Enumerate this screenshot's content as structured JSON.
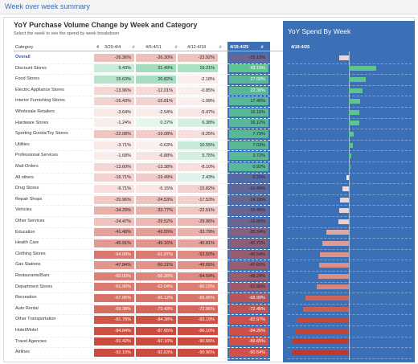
{
  "page": {
    "title": "Week over week summary"
  },
  "table": {
    "title": "YoY Purchase Volume Change by Week and Category",
    "subtitle": "Select the week to see the spend by week breakdown",
    "headers": {
      "category": "Category",
      "sort_mark": "4",
      "w1": "3/29-4/4",
      "w2": "4/5-4/11",
      "w3": "4/12-4/18",
      "w4": "4/19-4/25",
      "sort_icon": "⇵",
      "sort_icon_hl": "⇵"
    },
    "rows": [
      {
        "category": "Overall",
        "link": true,
        "w1": "-26.36%",
        "w2": "-26.30%",
        "w3": "-23.92%",
        "w4": "-15.12%",
        "v1": -26.36,
        "v2": -26.3,
        "v3": -23.92,
        "v4": -15.12
      },
      {
        "category": "Discount Stores",
        "w1": "9.43%",
        "w2": "21.49%",
        "w3": "19.21%",
        "w4": "43.15%",
        "v1": 9.43,
        "v2": 21.49,
        "v3": 19.21,
        "v4": 43.15
      },
      {
        "category": "Food Stores",
        "w1": "15.63%",
        "w2": "20.82%",
        "w3": "-2.18%",
        "w4": "27.00%",
        "v1": 15.63,
        "v2": 20.82,
        "v3": -2.18,
        "v4": 27.0
      },
      {
        "category": "Electric Appliance Stores",
        "w1": "-13.96%",
        "w2": "-12.01%",
        "w3": "-0.85%",
        "w4": "22.38%",
        "v1": -13.96,
        "v2": -12.01,
        "v3": -0.85,
        "v4": 22.38
      },
      {
        "category": "Interior Furnishing Stores",
        "w1": "-15.43%",
        "w2": "-15.81%",
        "w3": "-1.08%",
        "w4": "17.46%",
        "v1": -15.43,
        "v2": -15.81,
        "v3": -1.08,
        "v4": 17.46
      },
      {
        "category": "Wholesale Retailers",
        "w1": "-3.64%",
        "w2": "-2.54%",
        "w3": "-5.47%",
        "w4": "16.16%",
        "v1": -3.64,
        "v2": -2.54,
        "v3": -5.47,
        "v4": 16.16
      },
      {
        "category": "Hardware Stores",
        "w1": "-1.24%",
        "w2": "0.37%",
        "w3": "6.38%",
        "w4": "16.12%",
        "v1": -1.24,
        "v2": 0.37,
        "v3": 6.38,
        "v4": 16.12
      },
      {
        "category": "Sporting Goods/Toy Stores",
        "w1": "-22.08%",
        "w2": "-19.08%",
        "w3": "-9.25%",
        "w4": "7.79%",
        "v1": -22.08,
        "v2": -19.08,
        "v3": -9.25,
        "v4": 7.79
      },
      {
        "category": "Utilities",
        "w1": "-3.71%",
        "w2": "-0.63%",
        "w3": "10.55%",
        "w4": "7.03%",
        "v1": -3.71,
        "v2": -0.63,
        "v3": 10.55,
        "v4": 7.03
      },
      {
        "category": "Professional Services",
        "w1": "-1.68%",
        "w2": "-6.88%",
        "w3": "5.75%",
        "w4": "3.72%",
        "v1": -1.68,
        "v2": -6.88,
        "v3": 5.75,
        "v4": 3.72
      },
      {
        "category": "Mail-Orders",
        "w1": "-13.60%",
        "w2": "-13.38%",
        "w3": "-8.10%",
        "w4": "0.92%",
        "v1": -13.6,
        "v2": -13.38,
        "v3": -8.1,
        "v4": 0.92
      },
      {
        "category": "All others",
        "w1": "-16.71%",
        "w2": "-19.49%",
        "w3": "2.43%",
        "w4": "-3.31%",
        "v1": -16.71,
        "v2": -19.49,
        "v3": 2.43,
        "v4": -3.31
      },
      {
        "category": "Drug Stores",
        "w1": "-9.71%",
        "w2": "-5.15%",
        "w3": "-15.82%",
        "w4": "-10.49%",
        "v1": -9.71,
        "v2": -5.15,
        "v3": -15.82,
        "v4": -10.49
      },
      {
        "category": "Repair Shops",
        "w1": "-20.96%",
        "w2": "-24.53%",
        "w3": "-17.53%",
        "w4": "-14.18%",
        "v1": -20.96,
        "v2": -24.53,
        "v3": -17.53,
        "v4": -14.18
      },
      {
        "category": "Vehicles",
        "w1": "-34.29%",
        "w2": "-33.77%",
        "w3": "-22.51%",
        "w4": "-15.45%",
        "v1": -34.29,
        "v2": -33.77,
        "v3": -22.51,
        "v4": -15.45
      },
      {
        "category": "Other Services",
        "w1": "-24.47%",
        "w2": "-29.52%",
        "w3": "-29.96%",
        "w4": "-16.80%",
        "v1": -24.47,
        "v2": -29.52,
        "v3": -29.96,
        "v4": -16.8
      },
      {
        "category": "Education",
        "w1": "-41.48%",
        "w2": "-43.55%",
        "w3": "-33.79%",
        "w4": "-35.34%",
        "v1": -41.48,
        "v2": -43.55,
        "v3": -33.79,
        "v4": -35.34
      },
      {
        "category": "Health Care",
        "w1": "-45.91%",
        "w2": "-49.16%",
        "w3": "-40.81%",
        "w4": "-41.71%",
        "v1": -45.91,
        "v2": -49.16,
        "v3": -40.81,
        "v4": -41.71
      },
      {
        "category": "Clothing Stores",
        "w1": "-64.09%",
        "w2": "-61.97%",
        "w3": "-53.50%",
        "w4": "-46.54%",
        "v1": -64.09,
        "v2": -61.97,
        "v3": -53.5,
        "v4": -46.54
      },
      {
        "category": "Gas Stations",
        "w1": "-47.84%",
        "w2": "-50.21%",
        "w3": "-49.66%",
        "w4": "-47.63%",
        "v1": -47.84,
        "v2": -50.21,
        "v3": -49.66,
        "v4": -47.63
      },
      {
        "category": "Restaurants/Bars",
        "w1": "-60.00%",
        "w2": "-56.26%",
        "w3": "-54.59%",
        "w4": "-48.23%",
        "v1": -60.0,
        "v2": -56.26,
        "v3": -54.59,
        "v4": -48.23
      },
      {
        "category": "Department Stores",
        "w1": "-61.90%",
        "w2": "-63.04%",
        "w3": "-60.15%",
        "w4": "-51.90%",
        "v1": -61.9,
        "v2": -63.04,
        "v3": -60.15,
        "v4": -51.9
      },
      {
        "category": "Recreation",
        "w1": "-67.06%",
        "w2": "-66.12%",
        "w3": "-65.06%",
        "w4": "-68.99%",
        "v1": -67.06,
        "v2": -66.12,
        "v3": -65.06,
        "v4": -68.99
      },
      {
        "category": "Auto Rental",
        "w1": "-69.38%",
        "w2": "-73.43%",
        "w3": "-72.96%",
        "w4": "-72.45%",
        "v1": -69.38,
        "v2": -73.43,
        "v3": -72.96,
        "v4": -72.45
      },
      {
        "category": "Other Transportation",
        "w1": "-81.78%",
        "w2": "-84.38%",
        "w3": "-83.19%",
        "w4": "-82.97%",
        "v1": -81.78,
        "v2": -84.38,
        "v3": -83.19,
        "v4": -82.97
      },
      {
        "category": "Hotel/Motel",
        "w1": "-84.84%",
        "w2": "-87.65%",
        "w3": "-86.10%",
        "w4": "-84.26%",
        "v1": -84.84,
        "v2": -87.65,
        "v3": -86.1,
        "v4": -84.26
      },
      {
        "category": "Travel Agencies",
        "w1": "-91.42%",
        "w2": "-92.16%",
        "w3": "-90.66%",
        "w4": "-89.65%",
        "v1": -91.42,
        "v2": -92.16,
        "v3": -90.66,
        "v4": -89.65
      },
      {
        "category": "Airlines",
        "w1": "-92.10%",
        "w2": "-92.63%",
        "w3": "-90.96%",
        "w4": "-90.54%",
        "v1": -92.1,
        "v2": -92.63,
        "v3": -90.96,
        "v4": -90.54
      }
    ]
  },
  "panel": {
    "title": "YoY Spend By Week",
    "col_header": "4/19-4/25"
  },
  "colors": {
    "accent_blue": "#3b70b6",
    "title_blue": "#3b6db3",
    "positive_green": "#5fc48f",
    "negative_red": "#c0392b",
    "bar_light": "#f6f2f2"
  },
  "chart_data": {
    "type": "bar",
    "title": "YoY Spend By Week",
    "series": [
      {
        "name": "4/19-4/25",
        "values": [
          -15.12,
          43.15,
          27.0,
          22.38,
          17.46,
          16.16,
          16.12,
          7.79,
          7.03,
          3.72,
          0.92,
          -3.31,
          -10.49,
          -14.18,
          -15.45,
          -16.8,
          -35.34,
          -41.71,
          -46.54,
          -47.63,
          -48.23,
          -51.9,
          -68.99,
          -72.45,
          -82.97,
          -84.26,
          -89.65,
          -90.54
        ]
      }
    ],
    "categories": [
      "Overall",
      "Discount Stores",
      "Food Stores",
      "Electric Appliance Stores",
      "Interior Furnishing Stores",
      "Wholesale Retailers",
      "Hardware Stores",
      "Sporting Goods/Toy Stores",
      "Utilities",
      "Professional Services",
      "Mail-Orders",
      "All others",
      "Drug Stores",
      "Repair Shops",
      "Vehicles",
      "Other Services",
      "Education",
      "Health Care",
      "Clothing Stores",
      "Gas Stations",
      "Restaurants/Bars",
      "Department Stores",
      "Recreation",
      "Auto Rental",
      "Other Transportation",
      "Hotel/Motel",
      "Travel Agencies",
      "Airlines"
    ],
    "orientation": "horizontal",
    "grid": false
  }
}
